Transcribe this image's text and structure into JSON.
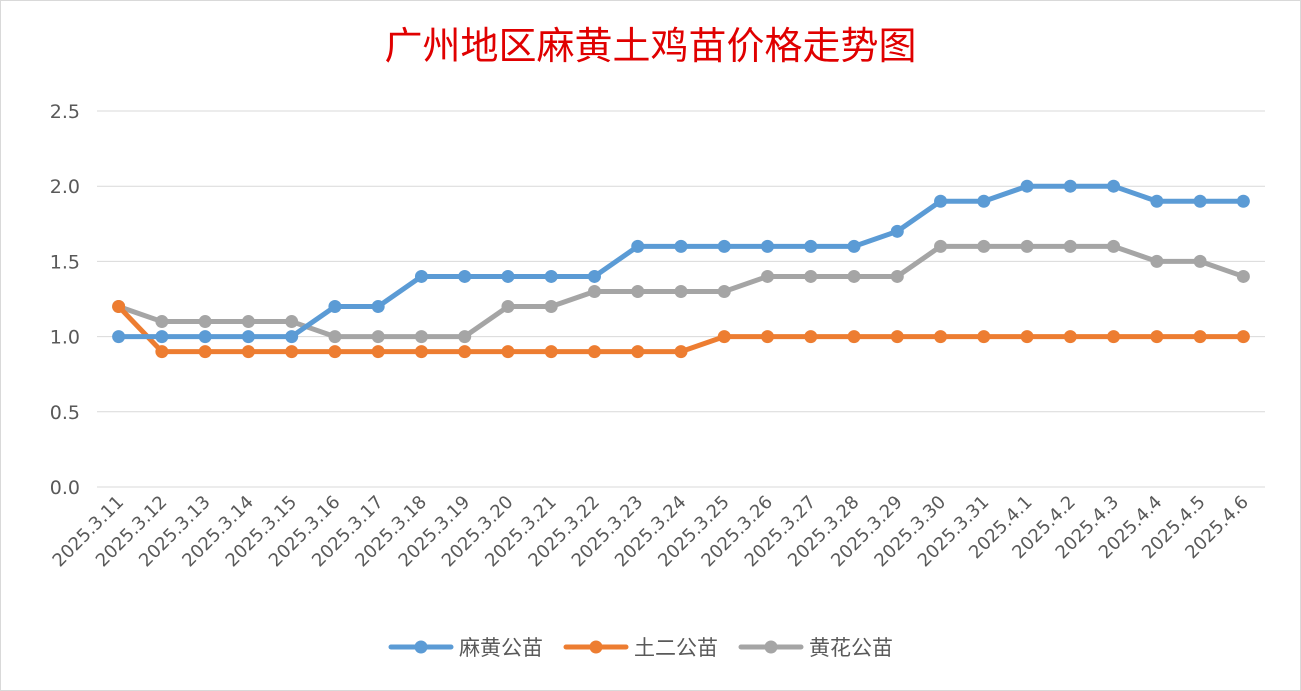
{
  "chart_data": {
    "type": "line",
    "title": "广州地区麻黄土鸡苗价格走势图",
    "xlabel": "",
    "ylabel": "",
    "ylim": [
      0,
      2.5
    ],
    "yticks": [
      "0.0",
      "0.5",
      "1.0",
      "1.5",
      "2.0",
      "2.5"
    ],
    "grid": true,
    "legend_position": "bottom",
    "x": [
      "2025.3.11",
      "2025.3.12",
      "2025.3.13",
      "2025.3.14",
      "2025.3.15",
      "2025.3.16",
      "2025.3.17",
      "2025.3.18",
      "2025.3.19",
      "2025.3.20",
      "2025.3.21",
      "2025.3.22",
      "2025.3.23",
      "2025.3.24",
      "2025.3.25",
      "2025.3.26",
      "2025.3.27",
      "2025.3.28",
      "2025.3.29",
      "2025.3.30",
      "2025.3.31",
      "2025.4.1",
      "2025.4.2",
      "2025.4.3",
      "2025.4.4",
      "2025.4.5",
      "2025.4.6"
    ],
    "series": [
      {
        "name": "麻黄公苗",
        "color": "#5b9bd5",
        "values": [
          1.0,
          1.0,
          1.0,
          1.0,
          1.0,
          1.2,
          1.2,
          1.4,
          1.4,
          1.4,
          1.4,
          1.4,
          1.6,
          1.6,
          1.6,
          1.6,
          1.6,
          1.6,
          1.7,
          1.9,
          1.9,
          2.0,
          2.0,
          2.0,
          1.9,
          1.9,
          1.9
        ]
      },
      {
        "name": "土二公苗",
        "color": "#ed7d31",
        "values": [
          1.2,
          0.9,
          0.9,
          0.9,
          0.9,
          0.9,
          0.9,
          0.9,
          0.9,
          0.9,
          0.9,
          0.9,
          0.9,
          0.9,
          1.0,
          1.0,
          1.0,
          1.0,
          1.0,
          1.0,
          1.0,
          1.0,
          1.0,
          1.0,
          1.0,
          1.0,
          1.0
        ]
      },
      {
        "name": "黄花公苗",
        "color": "#a5a5a5",
        "values": [
          1.2,
          1.1,
          1.1,
          1.1,
          1.1,
          1.0,
          1.0,
          1.0,
          1.0,
          1.2,
          1.2,
          1.3,
          1.3,
          1.3,
          1.3,
          1.4,
          1.4,
          1.4,
          1.4,
          1.6,
          1.6,
          1.6,
          1.6,
          1.6,
          1.5,
          1.5,
          1.4
        ]
      }
    ]
  }
}
